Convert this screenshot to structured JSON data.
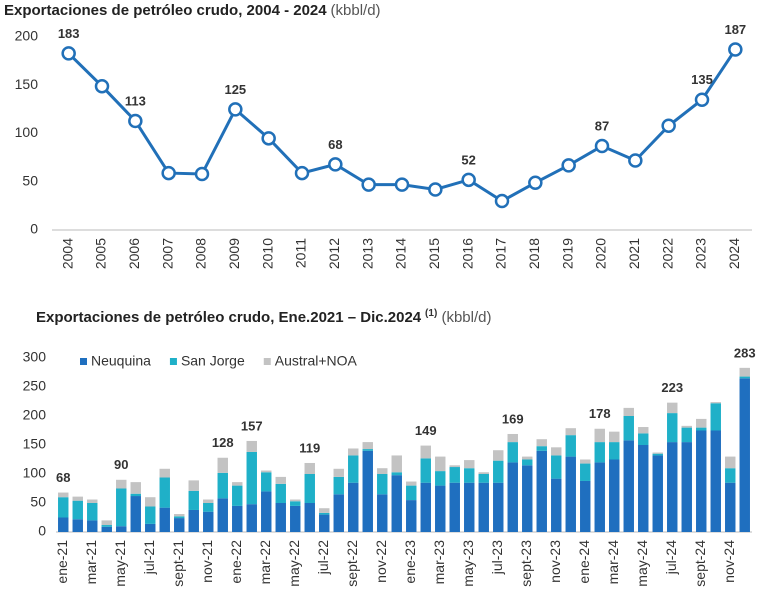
{
  "chart_data": [
    {
      "type": "line",
      "title": "Exportaciones de petróleo crudo, 2004 - 2024",
      "units": "(kbbl/d)",
      "categories": [
        "2004",
        "2005",
        "2006",
        "2007",
        "2008",
        "2009",
        "2010",
        "2011",
        "2012",
        "2013",
        "2014",
        "2015",
        "2016",
        "2017",
        "2018",
        "2019",
        "2020",
        "2021",
        "2022",
        "2023",
        "2024"
      ],
      "values": [
        183,
        149,
        113,
        59,
        58,
        125,
        95,
        59,
        68,
        47,
        47,
        42,
        52,
        30,
        49,
        67,
        87,
        72,
        108,
        135,
        187
      ],
      "value_labels": [
        "183",
        null,
        "113",
        null,
        null,
        "125",
        null,
        null,
        "68",
        null,
        null,
        null,
        "52",
        null,
        null,
        null,
        "87",
        null,
        null,
        "135",
        "187"
      ],
      "color": "#2170b8",
      "ylim": [
        0,
        200
      ],
      "yticks": [
        0,
        50,
        100,
        150,
        200
      ]
    },
    {
      "type": "stacked-bar",
      "title": "Exportaciones de petróleo crudo, Ene.2021 – Dic.2024",
      "title_note": "(1)",
      "units": "(kbbl/d)",
      "categories": [
        "ene-21",
        null,
        "mar-21",
        null,
        "may-21",
        null,
        "jul-21",
        null,
        "sept-21",
        null,
        "nov-21",
        null,
        "ene-22",
        null,
        "mar-22",
        null,
        "may-22",
        null,
        "jul-22",
        null,
        "sept-22",
        null,
        "nov-22",
        null,
        "ene-23",
        null,
        "mar-23",
        null,
        "may-23",
        null,
        "jul-23",
        null,
        "sept-23",
        null,
        "nov-23",
        null,
        "ene-24",
        null,
        "mar-24",
        null,
        "may-24",
        null,
        "jul-24",
        null,
        "sept-24",
        null,
        "nov-24",
        null
      ],
      "series": [
        {
          "name": "Neuquina",
          "color": "#1f6fbf",
          "values": [
            25,
            22,
            20,
            9,
            10,
            62,
            14,
            42,
            24,
            38,
            35,
            58,
            45,
            48,
            70,
            50,
            45,
            50,
            30,
            65,
            85,
            140,
            65,
            98,
            55,
            85,
            80,
            85,
            85,
            85,
            85,
            120,
            115,
            140,
            92,
            130,
            88,
            120,
            125,
            158,
            150,
            132,
            155,
            155,
            175,
            175,
            85,
            265
          ]
        },
        {
          "name": "San Jorge",
          "color": "#1fb0c8",
          "values": [
            35,
            32,
            30,
            3,
            65,
            4,
            30,
            52,
            3,
            33,
            15,
            44,
            35,
            90,
            33,
            33,
            8,
            50,
            3,
            30,
            47,
            3,
            35,
            5,
            25,
            42,
            25,
            27,
            25,
            15,
            38,
            35,
            10,
            8,
            40,
            37,
            30,
            35,
            30,
            42,
            20,
            3,
            50,
            25,
            5,
            47,
            25,
            3
          ]
        },
        {
          "name": "Austral+NOA",
          "color": "#c3c3c3",
          "values": [
            8,
            7,
            6,
            8,
            15,
            20,
            16,
            15,
            4,
            18,
            6,
            26,
            6,
            19,
            3,
            12,
            3,
            19,
            8,
            14,
            12,
            12,
            10,
            29,
            7,
            22,
            25,
            3,
            14,
            3,
            18,
            14,
            5,
            12,
            14,
            12,
            7,
            23,
            18,
            14,
            11,
            2,
            18,
            3,
            15,
            2,
            20,
            15
          ]
        }
      ],
      "total_labels": [
        68,
        null,
        null,
        null,
        90,
        null,
        null,
        null,
        null,
        null,
        null,
        128,
        null,
        157,
        null,
        null,
        null,
        119,
        null,
        null,
        null,
        null,
        null,
        null,
        null,
        149,
        null,
        null,
        null,
        null,
        null,
        169,
        null,
        null,
        null,
        null,
        null,
        178,
        null,
        null,
        null,
        null,
        223,
        null,
        null,
        null,
        null,
        283
      ],
      "ylim": [
        0,
        300
      ],
      "yticks": [
        0,
        50,
        100,
        150,
        200,
        250,
        300
      ]
    }
  ]
}
